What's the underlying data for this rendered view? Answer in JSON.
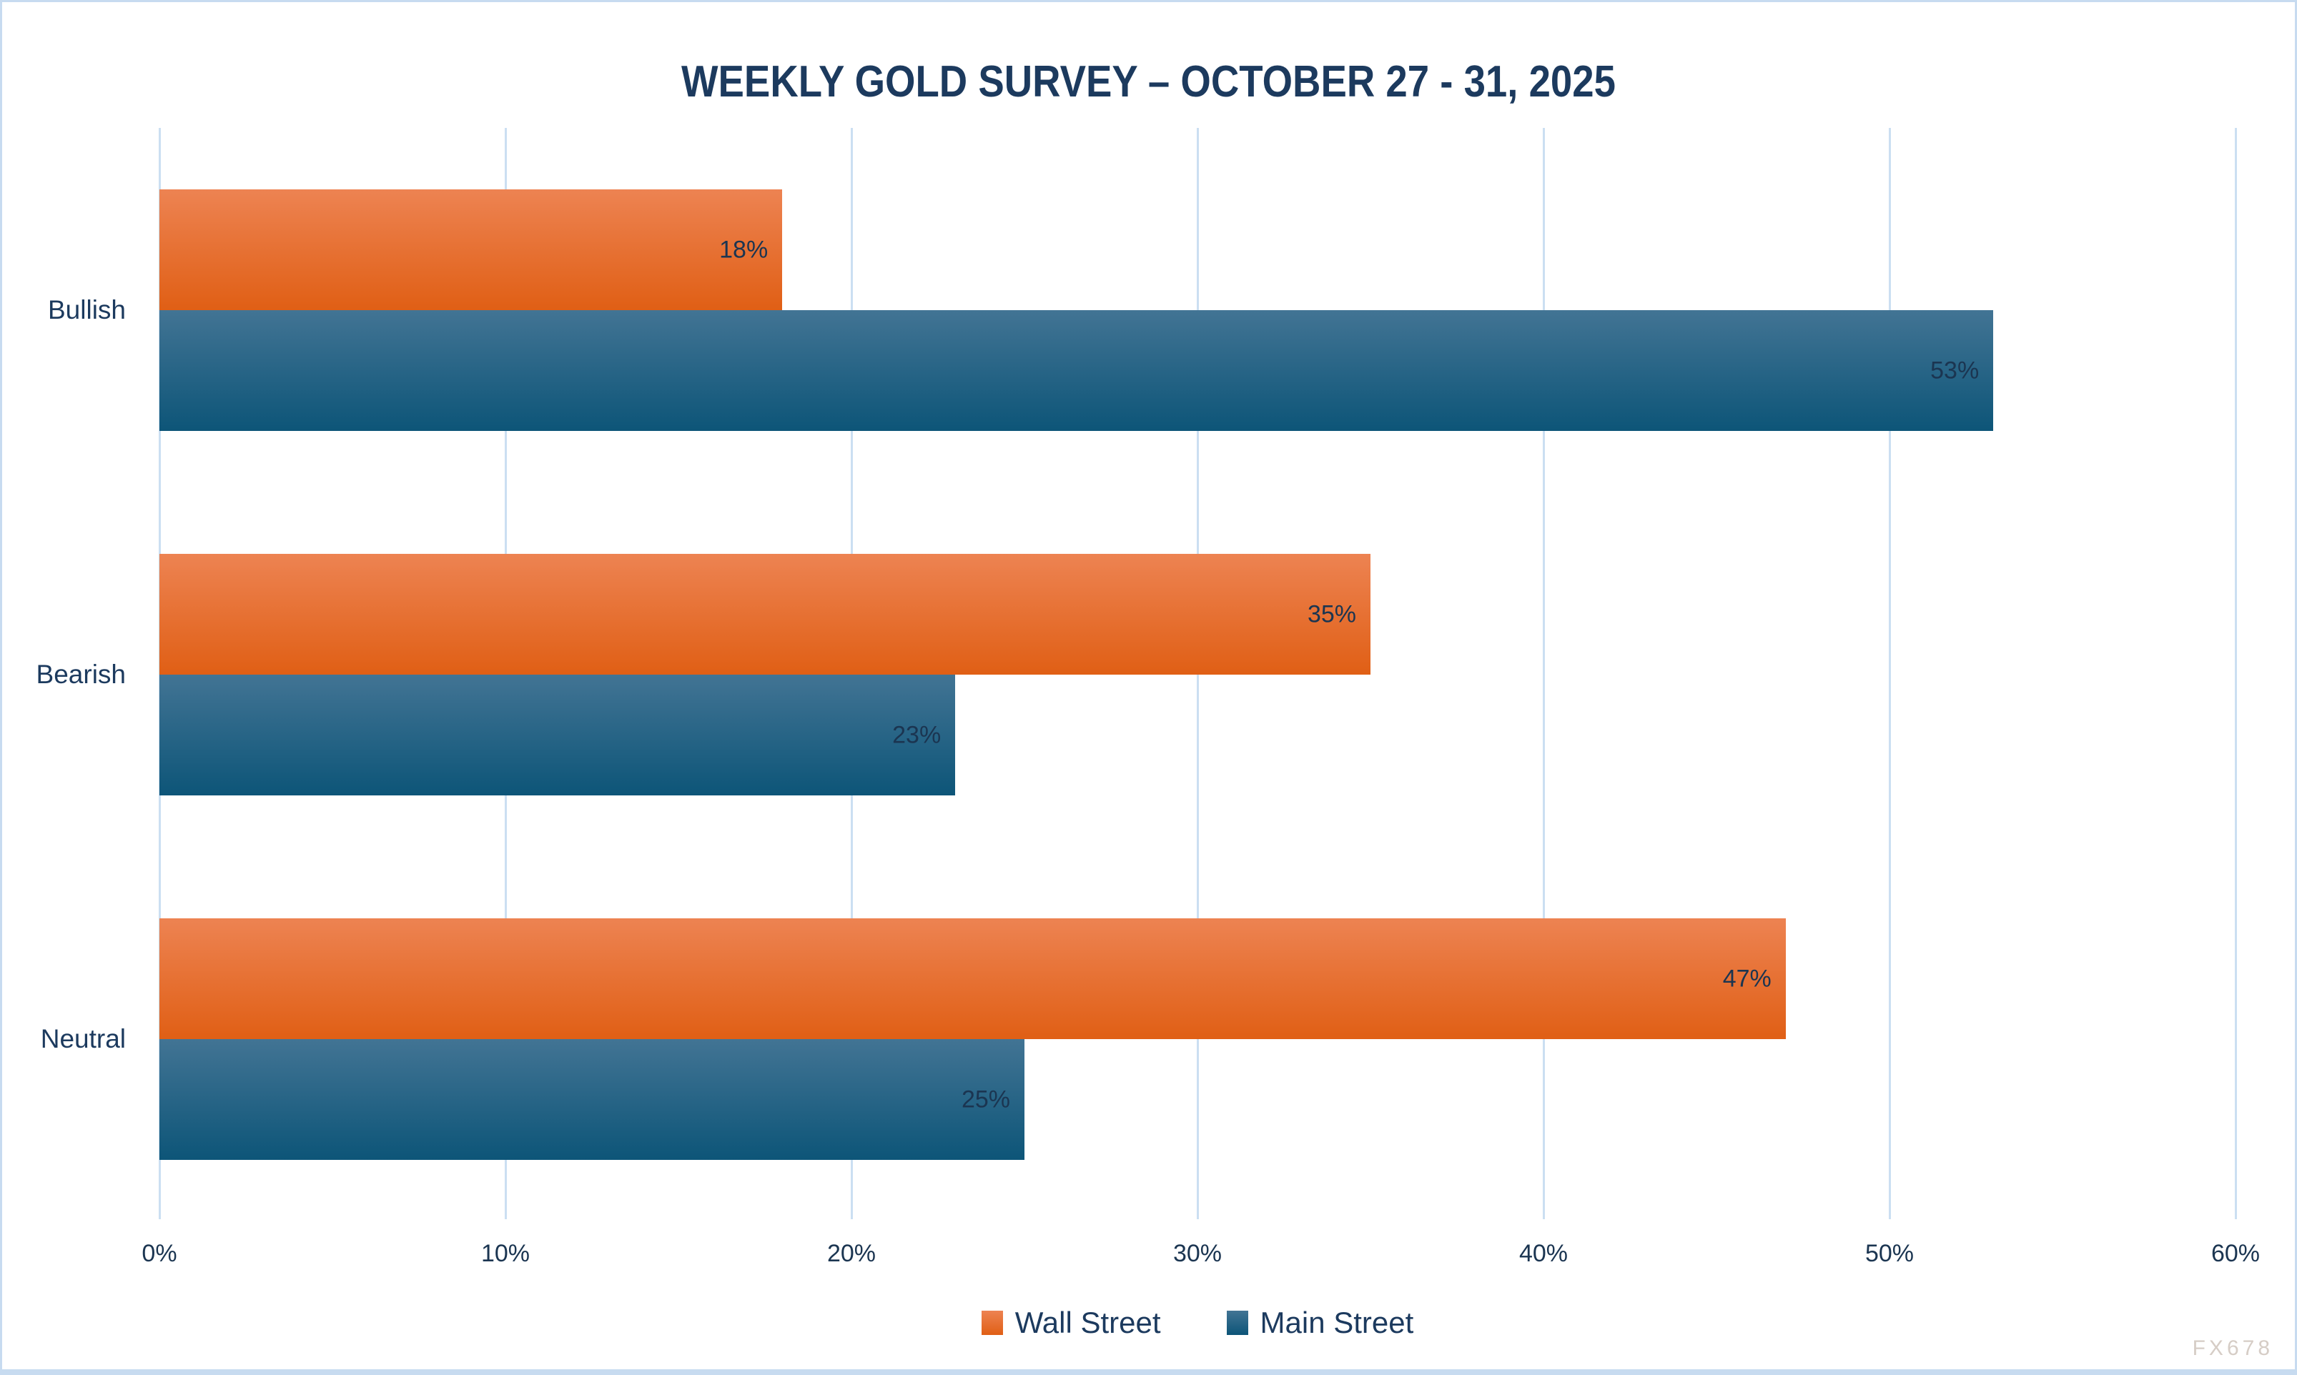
{
  "chart_data": {
    "type": "bar",
    "orientation": "horizontal",
    "title": "WEEKLY GOLD SURVEY – OCTOBER 27 - 31, 2025",
    "categories": [
      "Bullish",
      "Bearish",
      "Neutral"
    ],
    "series": [
      {
        "name": "Wall Street",
        "values": [
          18,
          35,
          47
        ],
        "labels": [
          "18%",
          "35%",
          "47%"
        ],
        "color_top": "#ED8352",
        "color_bottom": "#E05F15"
      },
      {
        "name": "Main Street",
        "values": [
          53,
          23,
          25
        ],
        "labels": [
          "53%",
          "23%",
          "25%"
        ],
        "color_top": "#427494",
        "color_bottom": "#0D5578"
      }
    ],
    "xlim": [
      0,
      60
    ],
    "xticks": [
      0,
      10,
      20,
      30,
      40,
      50,
      60
    ],
    "xtick_labels": [
      "0%",
      "10%",
      "20%",
      "30%",
      "40%",
      "50%",
      "60%"
    ],
    "grid": "vertical-only",
    "legend_position": "bottom-center"
  },
  "watermark": "FX678",
  "colors": {
    "background": "#FFFFFF",
    "border": "#C7DBF0",
    "gridline": "#CBDFF2",
    "title_text": "#1C3A5E",
    "label_text": "#1B3551",
    "watermark_text": "#D6CDC6"
  }
}
